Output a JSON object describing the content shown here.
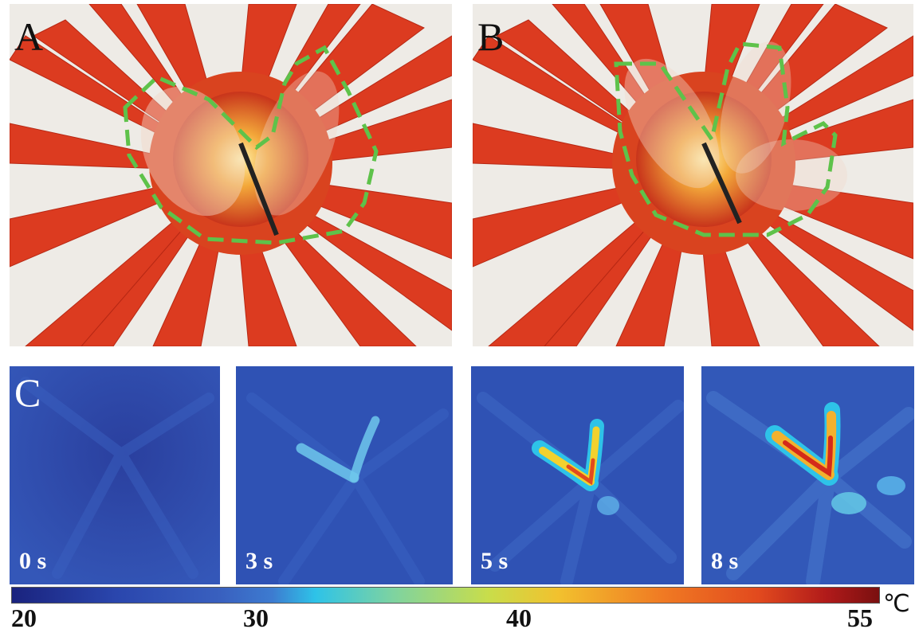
{
  "panels": {
    "a": {
      "label": "A"
    },
    "b": {
      "label": "B"
    },
    "c": {
      "label": "C"
    }
  },
  "thermal_frames": [
    {
      "time": "0 s"
    },
    {
      "time": "3 s"
    },
    {
      "time": "5 s"
    },
    {
      "time": "8 s"
    }
  ],
  "colorbar": {
    "ticks": [
      "20",
      "30",
      "40",
      "55"
    ],
    "unit": "℃",
    "min": 20,
    "max": 55
  },
  "colors": {
    "petal": "#d83a1f",
    "center": "#f0a020",
    "outline": "#5ec24a",
    "thermal_bg": "#2d4fb0"
  }
}
